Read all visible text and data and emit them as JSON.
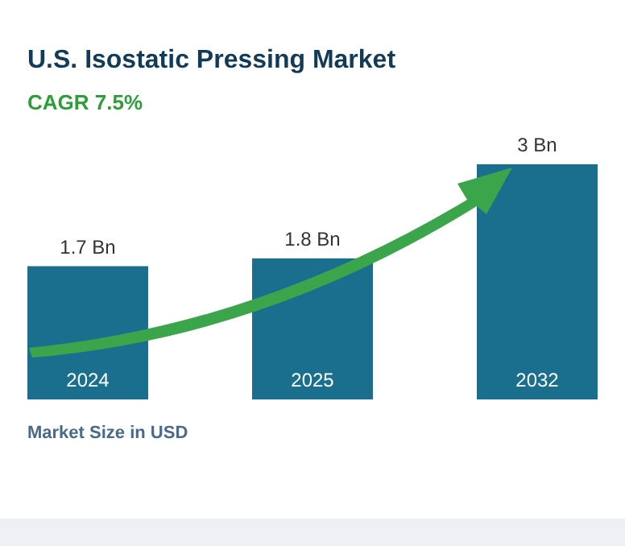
{
  "chart_data": {
    "type": "bar",
    "title": "U.S. Isostatic Pressing Market",
    "subtitle": "CAGR 7.5%",
    "categories": [
      "2024",
      "2025",
      "2032"
    ],
    "values": [
      1.7,
      1.8,
      3
    ],
    "value_labels": [
      "1.7 Bn",
      "1.8 Bn",
      "3 Bn"
    ],
    "color": "#1b6f8e",
    "annotations": [
      "Market Size in USD"
    ]
  }
}
